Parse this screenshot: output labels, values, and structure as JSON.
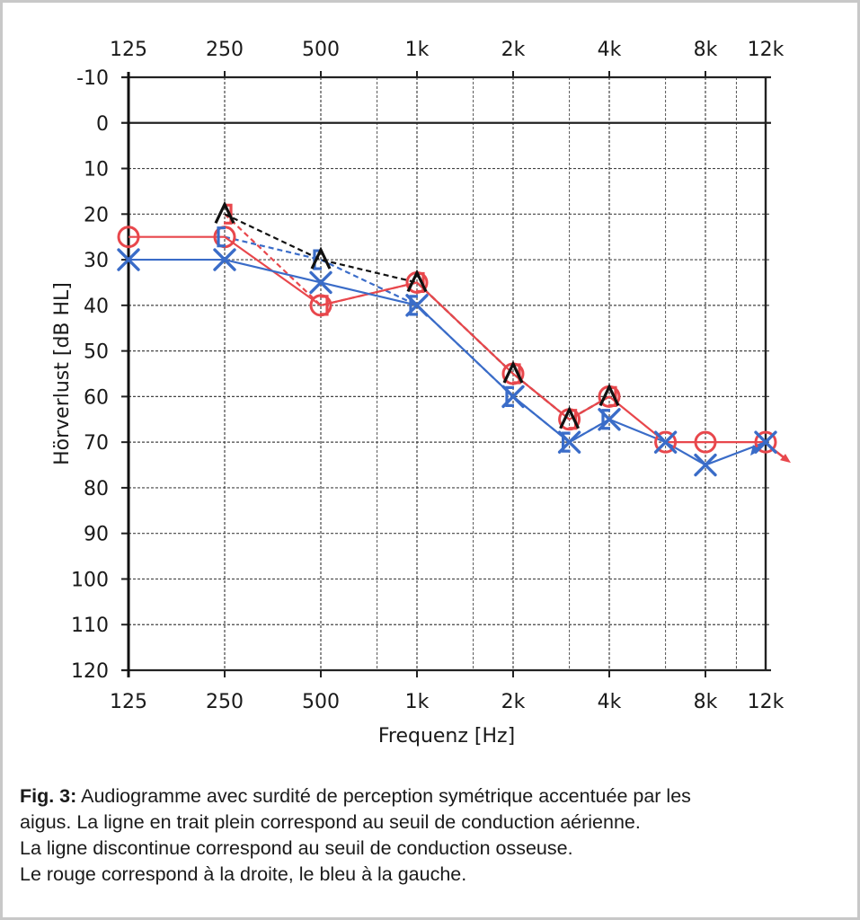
{
  "chart_data": {
    "type": "line",
    "title": "",
    "xlabel": "Frequenz [Hz]",
    "ylabel": "Hörverlust [dB HL]",
    "x_scale": "log2",
    "x_tick_values": [
      125,
      250,
      500,
      1000,
      2000,
      4000,
      8000,
      12000
    ],
    "x_tick_labels": [
      "125",
      "250",
      "500",
      "1k",
      "2k",
      "4k",
      "8k",
      "12k"
    ],
    "x_minor_grid": [
      750,
      1500,
      3000,
      6000,
      10000
    ],
    "xlim": [
      125,
      12000
    ],
    "ylim": [
      -10,
      120
    ],
    "y_inverted": true,
    "y_tick_values": [
      -10,
      0,
      10,
      20,
      30,
      40,
      50,
      60,
      70,
      80,
      90,
      100,
      110,
      120
    ],
    "y_tick_labels": [
      "-10",
      "0",
      "10",
      "20",
      "30",
      "40",
      "50",
      "60",
      "70",
      "80",
      "90",
      "100",
      "110",
      "120"
    ],
    "grid": true,
    "series": [
      {
        "name": "right-air-conduction",
        "color": "#e8474c",
        "line": "solid",
        "marker": "circle",
        "x": [
          125,
          250,
          500,
          1000,
          2000,
          3000,
          4000,
          6000,
          8000,
          12000
        ],
        "y": [
          25,
          25,
          40,
          35,
          55,
          65,
          60,
          70,
          70,
          70
        ],
        "arrow_at_last": true
      },
      {
        "name": "left-air-conduction",
        "color": "#3a6cc8",
        "line": "solid",
        "marker": "x",
        "x": [
          125,
          250,
          500,
          1000,
          2000,
          3000,
          4000,
          6000,
          8000,
          12000
        ],
        "y": [
          30,
          30,
          35,
          40,
          60,
          70,
          65,
          70,
          75,
          70
        ],
        "arrow_at_last": true
      },
      {
        "name": "right-bone-conduction",
        "color": "#e8474c",
        "line": "dashed",
        "marker": "bracket-right",
        "x": [
          250,
          500,
          1000,
          2000,
          3000,
          4000
        ],
        "y": [
          20,
          40,
          35,
          55,
          65,
          60
        ]
      },
      {
        "name": "left-bone-conduction",
        "color": "#3a6cc8",
        "line": "dashed",
        "marker": "bracket-left",
        "x": [
          250,
          500,
          1000,
          2000,
          3000,
          4000
        ],
        "y": [
          25,
          30,
          40,
          60,
          70,
          65
        ]
      },
      {
        "name": "bone-conduction-unmasked",
        "color": "#111111",
        "line": "dashed",
        "marker": "caret",
        "x": [
          250,
          500,
          1000,
          2000,
          3000,
          4000
        ],
        "y": [
          20,
          30,
          35,
          55,
          65,
          60
        ]
      }
    ]
  },
  "caption": {
    "label": "Fig. 3:",
    "line1": " Audiogramme avec surdité de perception symétrique accentuée par les",
    "line2": "aigus. La ligne en trait plein correspond au seuil de conduction aérienne.",
    "line3": "La ligne discontinue correspond au seuil de conduction osseuse.",
    "line4": "Le rouge correspond à la droite, le bleu à la gauche."
  },
  "colors": {
    "right": "#e8474c",
    "left": "#3a6cc8",
    "bone_unmasked": "#111111",
    "frame": "#c8c8c8"
  }
}
